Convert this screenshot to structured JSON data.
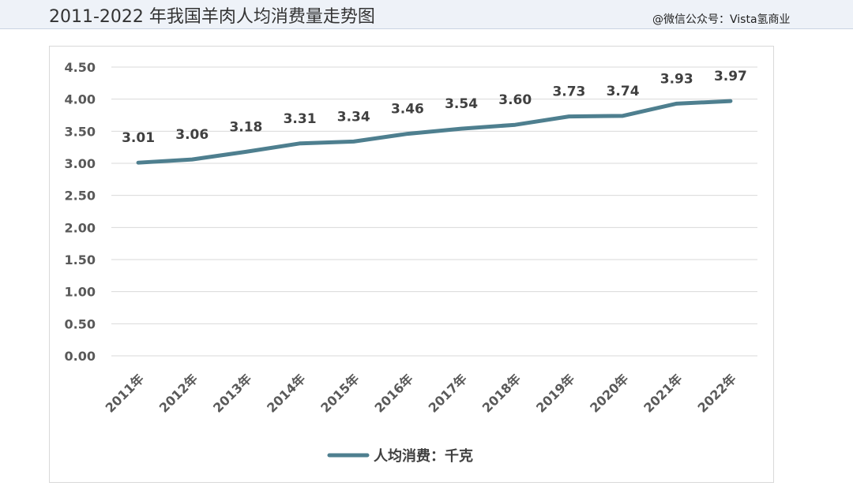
{
  "header": {
    "title": "2011-2022 年我国羊肉人均消费量走势图",
    "watermark": "@微信公众号：Vista氢商业"
  },
  "colors": {
    "line": "#4e7f8f",
    "grid": "#d9d9d9",
    "axis_text": "#595959",
    "label_text": "#404040"
  },
  "chart_data": {
    "type": "line",
    "title": "",
    "xlabel": "",
    "ylabel": "",
    "categories": [
      "2011年",
      "2012年",
      "2013年",
      "2014年",
      "2015年",
      "2016年",
      "2017年",
      "2018年",
      "2019年",
      "2020年",
      "2021年",
      "2022年"
    ],
    "series": [
      {
        "name": "人均消费：千克",
        "values": [
          3.01,
          3.06,
          3.18,
          3.31,
          3.34,
          3.46,
          3.54,
          3.6,
          3.73,
          3.74,
          3.93,
          3.97
        ],
        "labels": [
          "3.01",
          "3.06",
          "3.18",
          "3.31",
          "3.34",
          "3.46",
          "3.54",
          "3.60",
          "3.73",
          "3.74",
          "3.93",
          "3.97"
        ]
      }
    ],
    "ylim": [
      0,
      4.5
    ],
    "yticks": [
      "0.00",
      "0.50",
      "1.00",
      "1.50",
      "2.00",
      "2.50",
      "3.00",
      "3.50",
      "4.00",
      "4.50"
    ],
    "grid": true,
    "legend": "bottom"
  }
}
